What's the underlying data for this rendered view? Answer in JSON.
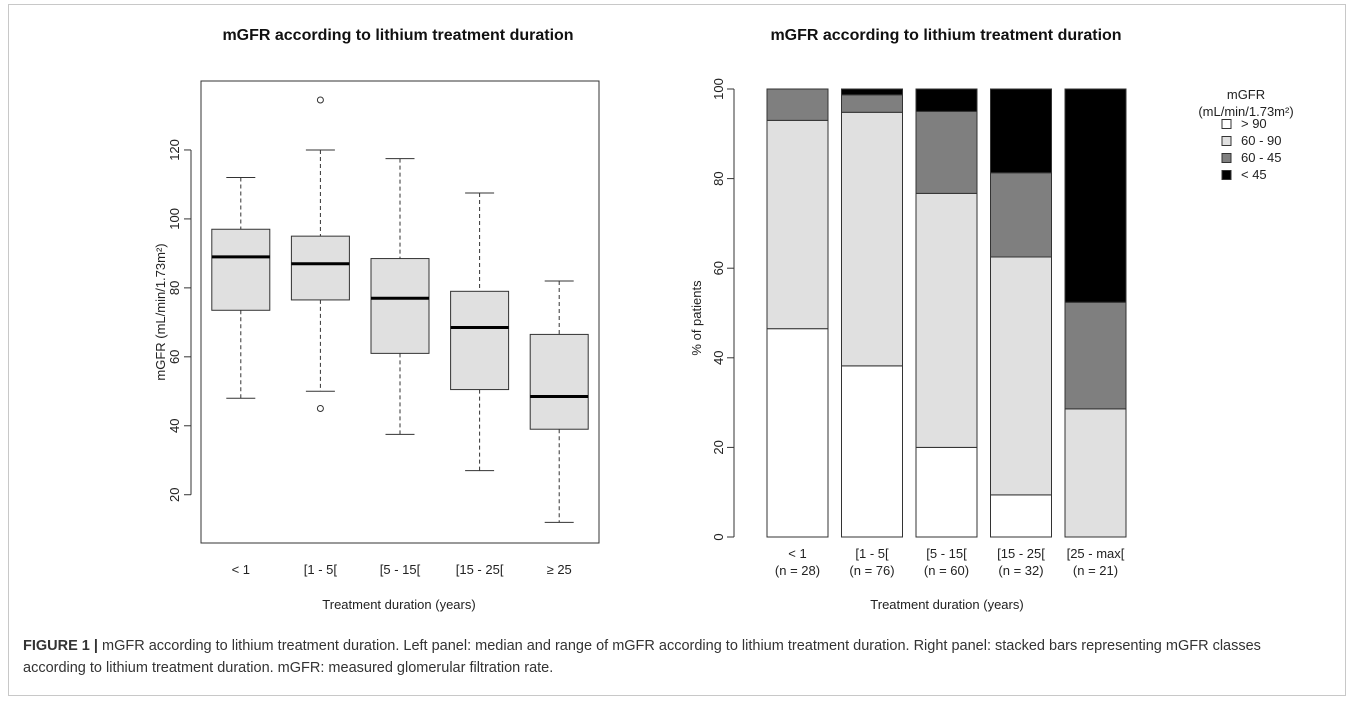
{
  "figure": {
    "label": "FIGURE 1 |",
    "caption": " mGFR according to lithium treatment duration. Left panel: median and range of mGFR according to lithium treatment duration. Right panel: stacked bars representing mGFR classes according to lithium treatment duration. mGFR: measured glomerular filtration rate."
  },
  "chart_data": [
    {
      "type": "box",
      "title": "mGFR according to lithium treatment duration",
      "xlabel": "Treatment duration (years)",
      "ylabel": "mGFR (mL/min/1.73m²)",
      "categories": [
        "< 1",
        "[1 - 5[",
        "[5 - 15[",
        "[15 - 25[",
        "≥ 25"
      ],
      "boxes": [
        {
          "min": 48,
          "q1": 73.5,
          "median": 89,
          "q3": 97,
          "max": 112,
          "outliers": []
        },
        {
          "min": 50,
          "q1": 76.5,
          "median": 87,
          "q3": 95,
          "max": 120,
          "outliers": [
            134.5,
            45
          ]
        },
        {
          "min": 37.5,
          "q1": 61,
          "median": 77,
          "q3": 88.5,
          "max": 117.5,
          "outliers": []
        },
        {
          "min": 27,
          "q1": 50.5,
          "median": 68.5,
          "q3": 79,
          "max": 107.5,
          "outliers": []
        },
        {
          "min": 12,
          "q1": 39,
          "median": 48.5,
          "q3": 66.5,
          "max": 82,
          "outliers": []
        }
      ],
      "yticks": [
        20,
        40,
        60,
        80,
        100,
        120
      ],
      "ylim": [
        6,
        140
      ],
      "fill_color": "#e0e0e0"
    },
    {
      "type": "stacked_bar",
      "title": "mGFR according to lithium treatment duration",
      "xlabel": "Treatment duration (years)",
      "ylabel": "% of patients",
      "categories": [
        "< 1",
        "[1 - 5[",
        "[5 - 15[",
        "[15 - 25[",
        "[25 - max["
      ],
      "category_counts": [
        "(n = 28)",
        "(n = 76)",
        "(n = 60)",
        "(n = 32)",
        "(n = 21)"
      ],
      "series": [
        {
          "name": "> 90",
          "color": "#ffffff",
          "values": [
            46.5,
            38.2,
            20,
            9.4,
            0
          ]
        },
        {
          "name": "60 - 90",
          "color": "#e0e0e0",
          "values": [
            46.5,
            56.6,
            56.7,
            53.1,
            28.6
          ]
        },
        {
          "name": "60 - 45",
          "color": "#7f7f7f",
          "values": [
            7,
            3.9,
            18.3,
            18.8,
            23.8
          ]
        },
        {
          "name": "< 45",
          "color": "#000000",
          "values": [
            0,
            1.3,
            5,
            18.7,
            47.6
          ]
        }
      ],
      "yticks": [
        0,
        20,
        40,
        60,
        80,
        100
      ],
      "ylim": [
        0,
        100
      ],
      "legend": {
        "title_line1": "mGFR",
        "title_line2": "(mL/min/1.73m²)",
        "position": "top-right"
      }
    }
  ]
}
